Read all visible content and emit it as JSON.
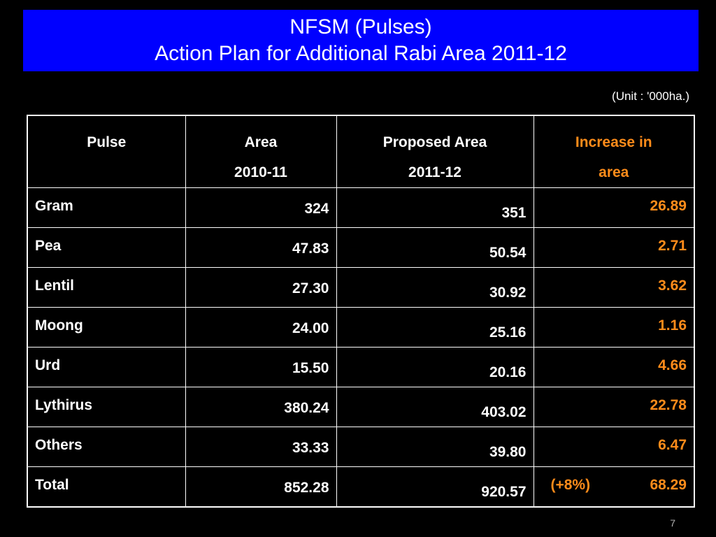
{
  "title": {
    "line1": "NFSM (Pulses)",
    "line2": "Action Plan for Additional Rabi Area 2011-12"
  },
  "unit_note": "(Unit : '000ha.)",
  "table": {
    "headers": {
      "pulse": "Pulse",
      "area_line1": "Area",
      "area_line2": "2010-11",
      "proposed_line1": "Proposed Area",
      "proposed_line2": "2011-12",
      "increase_line1": "Increase in",
      "increase_line2": "area"
    },
    "rows": [
      {
        "pulse": "Gram",
        "area": "324",
        "proposed": "351",
        "increase": "26.89"
      },
      {
        "pulse": "Pea",
        "area": "47.83",
        "proposed": "50.54",
        "increase": "2.71"
      },
      {
        "pulse": "Lentil",
        "area": "27.30",
        "proposed": "30.92",
        "increase": "3.62"
      },
      {
        "pulse": "Moong",
        "area": "24.00",
        "proposed": "25.16",
        "increase": "1.16"
      },
      {
        "pulse": "Urd",
        "area": "15.50",
        "proposed": "20.16",
        "increase": "4.66"
      },
      {
        "pulse": "Lythirus",
        "area": "380.24",
        "proposed": "403.02",
        "increase": "22.78"
      },
      {
        "pulse": "Others",
        "area": "33.33",
        "proposed": "39.80",
        "increase": "6.47"
      }
    ],
    "total": {
      "pulse": "Total",
      "area": "852.28",
      "proposed": "920.57",
      "percent": "(+8%)",
      "increase": "68.29"
    }
  },
  "page_number": "7",
  "colors": {
    "background": "#000000",
    "title_bar": "#0000ff",
    "text": "#ffffff",
    "highlight": "#ff8c1a"
  }
}
